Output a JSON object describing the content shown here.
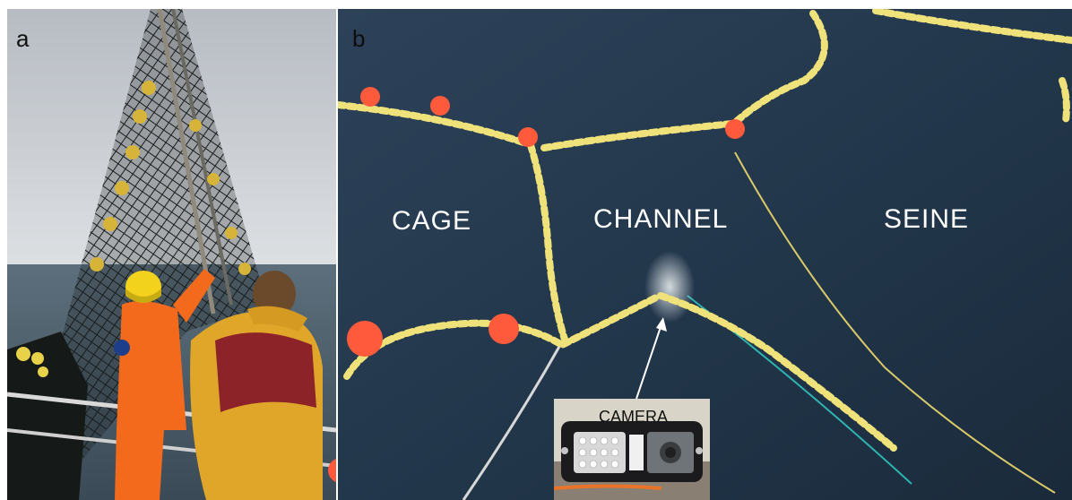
{
  "panels": {
    "a": {
      "letter": "a"
    },
    "b": {
      "letter": "b"
    }
  },
  "labels": {
    "cage": "CAGE",
    "channel": "CHANNEL",
    "seine": "SEINE",
    "camera": "CAMERA"
  },
  "colors": {
    "sea": "#263c52",
    "sky": "#c9cdd2",
    "float_yellow": "#efe27a",
    "buoy_orange": "#ff5a3c",
    "rope_teal": "#2fb3b0",
    "jacket_orange": "#f36a1d",
    "jacket_yellow": "#e0a62a",
    "jacket_red": "#8c2328"
  }
}
